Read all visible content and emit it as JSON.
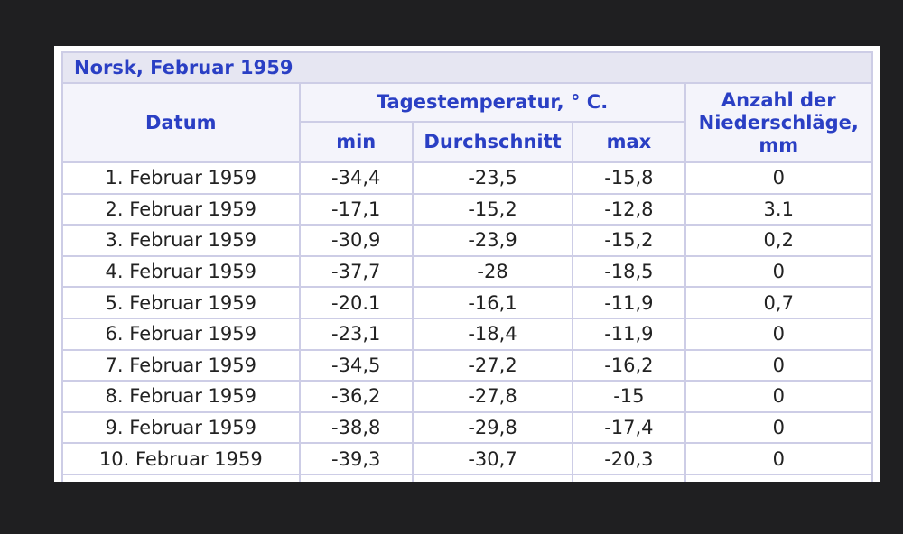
{
  "table": {
    "caption": "Norsk, Februar 1959",
    "headers": {
      "datum": "Datum",
      "temperature_group": "Tagestemperatur, ° C.",
      "min": "min",
      "avg": "Durchschnitt",
      "max": "max",
      "precipitation": "Anzahl der Niederschläge, mm"
    },
    "rows": [
      {
        "datum": "1. Februar 1959",
        "min": "-34,4",
        "avg": "-23,5",
        "max": "-15,8",
        "precip": "0"
      },
      {
        "datum": "2. Februar 1959",
        "min": "-17,1",
        "avg": "-15,2",
        "max": "-12,8",
        "precip": "3.1"
      },
      {
        "datum": "3. Februar 1959",
        "min": "-30,9",
        "avg": "-23,9",
        "max": "-15,2",
        "precip": "0,2"
      },
      {
        "datum": "4. Februar 1959",
        "min": "-37,7",
        "avg": "-28",
        "max": "-18,5",
        "precip": "0"
      },
      {
        "datum": "5. Februar 1959",
        "min": "-20.1",
        "avg": "-16,1",
        "max": "-11,9",
        "precip": "0,7"
      },
      {
        "datum": "6. Februar 1959",
        "min": "-23,1",
        "avg": "-18,4",
        "max": "-11,9",
        "precip": "0"
      },
      {
        "datum": "7. Februar 1959",
        "min": "-34,5",
        "avg": "-27,2",
        "max": "-16,2",
        "precip": "0"
      },
      {
        "datum": "8. Februar 1959",
        "min": "-36,2",
        "avg": "-27,8",
        "max": "-15",
        "precip": "0"
      },
      {
        "datum": "9. Februar 1959",
        "min": "-38,8",
        "avg": "-29,8",
        "max": "-17,4",
        "precip": "0"
      },
      {
        "datum": "10. Februar 1959",
        "min": "-39,3",
        "avg": "-30,7",
        "max": "-20,3",
        "precip": "0"
      }
    ]
  }
}
